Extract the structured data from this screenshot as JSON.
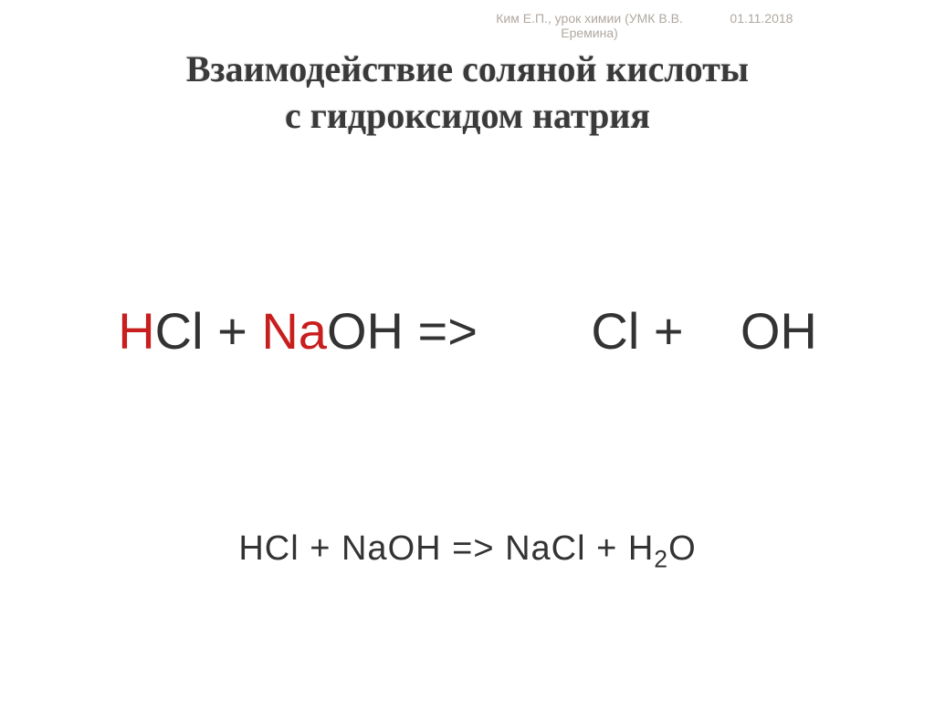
{
  "header": {
    "author_line1": "Ким Е.П., урок химии (УМК В.В.",
    "author_line2": "Еремина)",
    "date": "01.11.2018"
  },
  "title": {
    "line1": "Взаимодействие соляной кислоты",
    "line2": "с гидроксидом натрия"
  },
  "equation_main": {
    "h": "H",
    "cl": "Cl",
    "plus1": " + ",
    "na": "Na",
    "oh": "OH",
    "arrow": " => ",
    "gap": "       ",
    "cl2": "Cl",
    "plus2": " + ",
    "gap2": "   ",
    "oh2": "OH"
  },
  "equation_result": {
    "prefix": "HCl + NaOH => NaCl + H",
    "sub": "2",
    "suffix": "O"
  },
  "colors": {
    "highlight": "#c81e1e",
    "text": "#333333",
    "meta": "#b0a8a0",
    "title": "#3a3a3a",
    "background": "#ffffff"
  },
  "typography": {
    "title_font": "Times New Roman",
    "title_size_pt": 30,
    "eq_main_size_pt": 42,
    "eq_result_size_pt": 28,
    "meta_size_pt": 10
  }
}
